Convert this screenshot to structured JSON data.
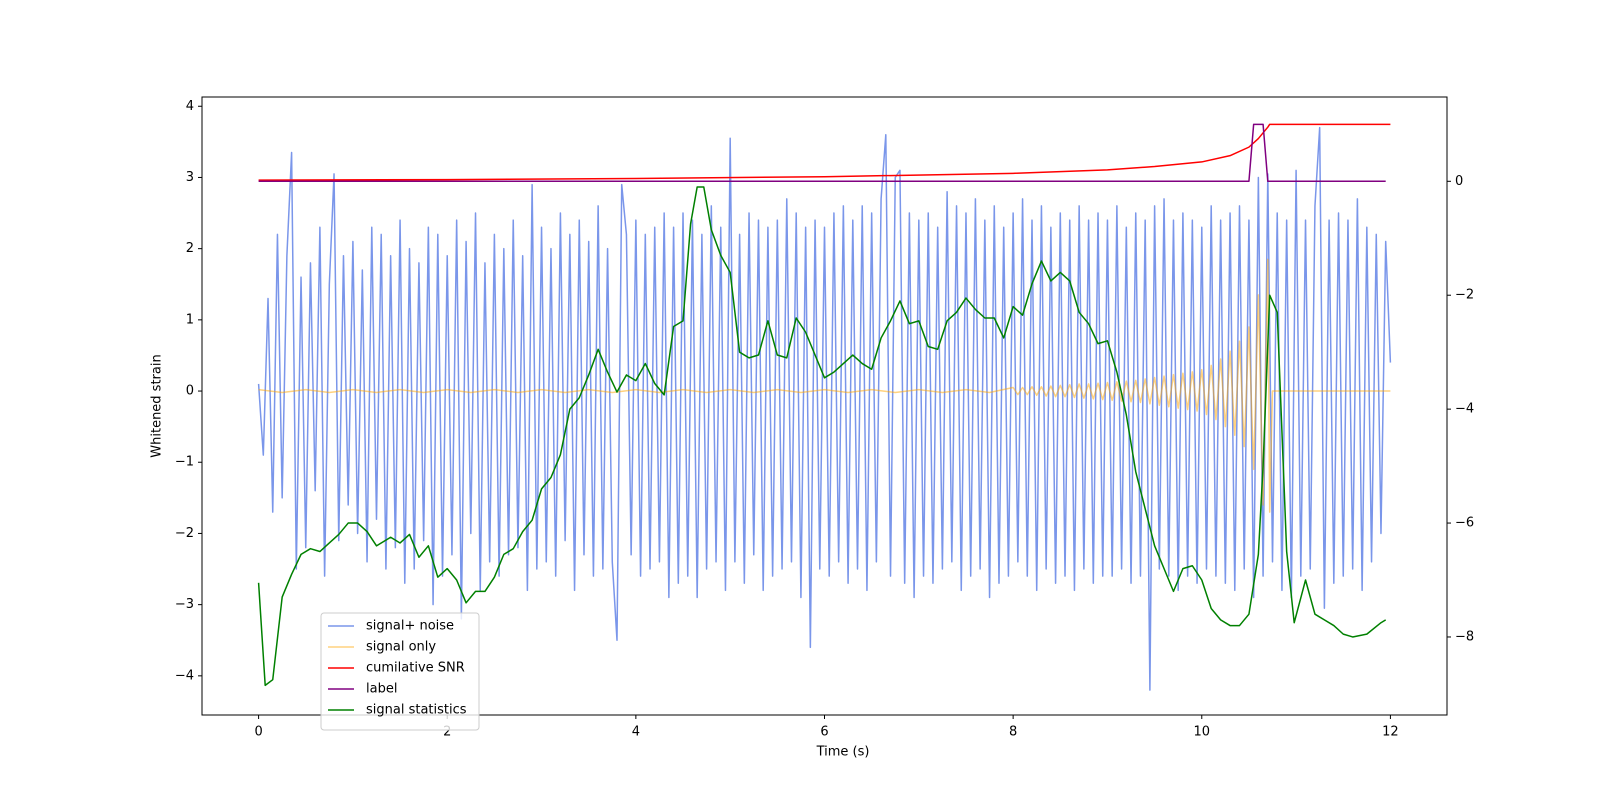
{
  "chart_data": {
    "type": "line",
    "x_label": "Time (s)",
    "y_label": "Whitened strain",
    "xlim": [
      -0.6,
      12.6
    ],
    "ylim": [
      -4.55,
      4.13
    ],
    "y2lim": [
      -9.37,
      1.48
    ],
    "xticks": [
      0,
      2,
      4,
      6,
      8,
      10,
      12
    ],
    "yticks": [
      {
        "value": -4,
        "label": "−4"
      },
      {
        "value": -3,
        "label": "−3"
      },
      {
        "value": -2,
        "label": "−2"
      },
      {
        "value": -1,
        "label": "−1"
      },
      0,
      1,
      2,
      3,
      4
    ],
    "y2ticks": [
      {
        "value": -8,
        "label": "−8"
      },
      {
        "value": -6,
        "label": "−6"
      },
      {
        "value": -4,
        "label": "−4"
      },
      {
        "value": -2,
        "label": "−2"
      },
      0
    ],
    "legend": "lower left",
    "series": [
      {
        "name": "signal+ noise",
        "color": "#4169e1",
        "alpha": 0.7,
        "x": [
          0,
          0.05,
          0.1,
          0.15,
          0.2,
          0.25,
          0.3,
          0.35,
          0.4,
          0.45,
          0.5,
          0.55,
          0.6,
          0.65,
          0.7,
          0.75,
          0.8,
          0.85,
          0.9,
          0.95,
          1,
          1.05,
          1.1,
          1.15,
          1.2,
          1.25,
          1.3,
          1.35,
          1.4,
          1.45,
          1.5,
          1.55,
          1.6,
          1.65,
          1.7,
          1.75,
          1.8,
          1.85,
          1.9,
          1.95,
          2,
          2.05,
          2.1,
          2.15,
          2.2,
          2.25,
          2.3,
          2.35,
          2.4,
          2.45,
          2.5,
          2.55,
          2.6,
          2.65,
          2.7,
          2.75,
          2.8,
          2.85,
          2.9,
          2.95,
          3,
          3.05,
          3.1,
          3.15,
          3.2,
          3.25,
          3.3,
          3.35,
          3.4,
          3.45,
          3.5,
          3.55,
          3.6,
          3.65,
          3.7,
          3.75,
          3.8,
          3.85,
          3.9,
          3.95,
          4,
          4.05,
          4.1,
          4.15,
          4.2,
          4.25,
          4.3,
          4.35,
          4.4,
          4.45,
          4.5,
          4.55,
          4.6,
          4.65,
          4.7,
          4.75,
          4.8,
          4.85,
          4.9,
          4.95,
          5,
          5.05,
          5.1,
          5.15,
          5.2,
          5.25,
          5.3,
          5.35,
          5.4,
          5.45,
          5.5,
          5.55,
          5.6,
          5.65,
          5.7,
          5.75,
          5.8,
          5.85,
          5.9,
          5.95,
          6,
          6.05,
          6.1,
          6.15,
          6.2,
          6.25,
          6.3,
          6.35,
          6.4,
          6.45,
          6.5,
          6.55,
          6.6,
          6.65,
          6.7,
          6.75,
          6.8,
          6.85,
          6.9,
          6.95,
          7,
          7.05,
          7.1,
          7.15,
          7.2,
          7.25,
          7.3,
          7.35,
          7.4,
          7.45,
          7.5,
          7.55,
          7.6,
          7.65,
          7.7,
          7.75,
          7.8,
          7.85,
          7.9,
          7.95,
          8,
          8.05,
          8.1,
          8.15,
          8.2,
          8.25,
          8.3,
          8.35,
          8.4,
          8.45,
          8.5,
          8.55,
          8.6,
          8.65,
          8.7,
          8.75,
          8.8,
          8.85,
          8.9,
          8.95,
          9,
          9.05,
          9.1,
          9.15,
          9.2,
          9.25,
          9.3,
          9.35,
          9.4,
          9.45,
          9.5,
          9.55,
          9.6,
          9.65,
          9.7,
          9.75,
          9.8,
          9.85,
          9.9,
          9.95,
          10,
          10.05,
          10.1,
          10.15,
          10.2,
          10.25,
          10.3,
          10.35,
          10.4,
          10.45,
          10.5,
          10.55,
          10.6,
          10.65,
          10.7,
          10.75,
          10.8,
          10.85,
          10.9,
          10.95,
          11,
          11.05,
          11.1,
          11.15,
          11.2,
          11.25,
          11.3,
          11.35,
          11.4,
          11.45,
          11.5,
          11.55,
          11.6,
          11.65,
          11.7,
          11.75,
          11.8,
          11.85,
          11.9,
          11.95,
          12
        ],
        "values": [
          0.1,
          -0.9,
          1.3,
          -1.7,
          2.2,
          -1.5,
          1.9,
          3.35,
          -2.5,
          1.6,
          -2.2,
          1.8,
          -1.4,
          2.3,
          -2.6,
          1.5,
          3.05,
          -2.1,
          1.9,
          -1.6,
          2.1,
          -2.0,
          1.7,
          -2.4,
          2.3,
          -1.8,
          2.2,
          -2.5,
          1.9,
          -2.2,
          2.4,
          -2.7,
          2.0,
          -2.5,
          1.8,
          -2.1,
          2.3,
          -3.0,
          2.2,
          -2.6,
          1.9,
          -2.3,
          2.4,
          -3.2,
          2.1,
          -2.0,
          2.5,
          -2.8,
          1.8,
          -2.4,
          2.2,
          -2.6,
          2.0,
          -2.3,
          2.4,
          -2.2,
          1.9,
          -2.8,
          2.9,
          -2.5,
          2.3,
          -2.4,
          2.0,
          -2.6,
          2.5,
          -2.1,
          2.2,
          -2.8,
          2.4,
          -2.3,
          2.1,
          -2.6,
          2.6,
          -2.5,
          2.0,
          -2.4,
          -3.5,
          2.9,
          2.2,
          -2.3,
          2.4,
          -2.6,
          2.2,
          -2.5,
          2.3,
          -2.4,
          2.5,
          -2.9,
          2.3,
          -2.7,
          2.5,
          -2.6,
          2.4,
          -2.9,
          2.2,
          -2.5,
          2.6,
          -2.4,
          2.3,
          -2.8,
          3.55,
          -2.4,
          2.2,
          -2.7,
          2.5,
          -2.3,
          2.4,
          -2.8,
          2.3,
          -2.6,
          2.4,
          -2.5,
          2.7,
          -2.4,
          2.5,
          -2.9,
          2.3,
          -3.6,
          2.4,
          -2.5,
          2.3,
          -2.6,
          2.5,
          -2.4,
          2.6,
          -2.7,
          2.4,
          -2.5,
          2.6,
          -2.8,
          2.5,
          -2.4,
          2.7,
          3.6,
          -2.6,
          3.0,
          3.1,
          -2.7,
          2.5,
          -2.9,
          2.4,
          -2.6,
          2.5,
          -2.7,
          2.3,
          -2.5,
          2.8,
          -2.4,
          2.6,
          -2.8,
          2.5,
          -2.6,
          2.7,
          -2.5,
          2.4,
          -2.9,
          2.6,
          -2.7,
          2.3,
          -2.6,
          2.5,
          -2.4,
          2.7,
          -2.6,
          2.4,
          -2.8,
          2.6,
          -2.5,
          2.3,
          -2.7,
          2.5,
          -2.6,
          2.4,
          -2.8,
          2.6,
          -2.5,
          2.4,
          -2.7,
          2.5,
          -2.6,
          2.4,
          -2.6,
          2.6,
          -2.5,
          2.3,
          -2.7,
          2.5,
          -2.6,
          2.4,
          -4.2,
          2.6,
          -2.5,
          2.7,
          -2.6,
          2.4,
          -2.8,
          2.5,
          -2.6,
          2.4,
          -2.7,
          2.3,
          -2.5,
          2.6,
          -2.6,
          2.4,
          -2.7,
          2.5,
          -2.8,
          2.6,
          -2.5,
          2.4,
          -2.9,
          3.0,
          -2.6,
          3.05,
          -2.4,
          2.5,
          -2.8,
          2.4,
          -2.9,
          3.1,
          -2.6,
          2.4,
          -2.5,
          2.6,
          3.7,
          -3.05,
          2.4,
          -2.7,
          2.5,
          -2.6,
          2.4,
          -2.5,
          2.7,
          -2.8,
          2.3,
          -2.4,
          2.2,
          -2.0,
          2.1,
          0.4
        ]
      },
      {
        "name": "signal only",
        "color": "#ffa500",
        "alpha": 0.5,
        "x": [
          0,
          0.25,
          0.5,
          0.75,
          1,
          1.25,
          1.5,
          1.75,
          2,
          2.25,
          2.5,
          2.75,
          3,
          3.25,
          3.5,
          3.75,
          4,
          4.25,
          4.5,
          4.75,
          5,
          5.25,
          5.5,
          5.75,
          6,
          6.25,
          6.5,
          6.75,
          7,
          7.25,
          7.5,
          7.75,
          8,
          8.05,
          8.1,
          8.15,
          8.2,
          8.25,
          8.3,
          8.35,
          8.4,
          8.45,
          8.5,
          8.55,
          8.6,
          8.65,
          8.7,
          8.75,
          8.8,
          8.85,
          8.9,
          8.95,
          9,
          9.05,
          9.1,
          9.15,
          9.2,
          9.25,
          9.3,
          9.35,
          9.4,
          9.45,
          9.5,
          9.55,
          9.6,
          9.65,
          9.7,
          9.75,
          9.8,
          9.85,
          9.9,
          9.95,
          10,
          10.05,
          10.1,
          10.15,
          10.2,
          10.25,
          10.3,
          10.35,
          10.4,
          10.45,
          10.5,
          10.55,
          10.6,
          10.65,
          10.7,
          10.72,
          10.75,
          12
        ],
        "values": [
          0.02,
          -0.02,
          0.02,
          -0.02,
          0.02,
          -0.02,
          0.02,
          -0.02,
          0.02,
          -0.02,
          0.02,
          -0.02,
          0.02,
          -0.02,
          0.02,
          -0.02,
          0.02,
          -0.02,
          0.02,
          -0.02,
          0.02,
          -0.02,
          0.02,
          -0.02,
          0.02,
          -0.02,
          0.02,
          -0.02,
          0.02,
          -0.02,
          0.02,
          -0.02,
          0.05,
          -0.05,
          0.05,
          -0.05,
          0.06,
          -0.06,
          0.06,
          -0.07,
          0.07,
          -0.08,
          0.08,
          -0.08,
          0.09,
          -0.09,
          0.1,
          -0.1,
          0.1,
          -0.11,
          0.11,
          -0.12,
          0.12,
          -0.13,
          0.13,
          -0.14,
          0.14,
          -0.15,
          0.15,
          -0.16,
          0.17,
          -0.18,
          0.19,
          -0.2,
          0.21,
          -0.22,
          0.23,
          -0.24,
          0.25,
          -0.26,
          0.27,
          -0.28,
          0.3,
          -0.33,
          0.36,
          -0.4,
          0.45,
          -0.5,
          0.56,
          -0.62,
          0.7,
          -0.78,
          0.9,
          -1.1,
          1.35,
          -1.6,
          1.85,
          -1.7,
          0,
          0
        ]
      },
      {
        "name": "cumilative SNR",
        "color": "#ff0000",
        "axis": "y2",
        "x": [
          0,
          2,
          4,
          6,
          8,
          9,
          9.5,
          10,
          10.3,
          10.5,
          10.6,
          10.7,
          10.72,
          11,
          12
        ],
        "values": [
          0.02,
          0.03,
          0.05,
          0.08,
          0.14,
          0.2,
          0.26,
          0.34,
          0.45,
          0.6,
          0.75,
          0.95,
          1.0,
          1.0,
          1.0
        ]
      },
      {
        "name": "label",
        "color": "#800080",
        "axis": "y2",
        "x": [
          0,
          10.5,
          10.55,
          10.65,
          10.7,
          11.95
        ],
        "values": [
          0,
          0,
          1,
          1,
          0,
          0
        ]
      },
      {
        "name": "signal statistics",
        "color": "#008000",
        "axis": "y2",
        "x": [
          0,
          0.07,
          0.15,
          0.25,
          0.35,
          0.45,
          0.55,
          0.65,
          0.75,
          0.85,
          0.95,
          1.05,
          1.15,
          1.25,
          1.4,
          1.5,
          1.6,
          1.7,
          1.8,
          1.9,
          2.0,
          2.1,
          2.2,
          2.3,
          2.4,
          2.5,
          2.6,
          2.7,
          2.8,
          2.9,
          3.0,
          3.1,
          3.2,
          3.3,
          3.4,
          3.5,
          3.6,
          3.7,
          3.8,
          3.9,
          4.0,
          4.1,
          4.2,
          4.3,
          4.4,
          4.5,
          4.58,
          4.65,
          4.72,
          4.8,
          4.9,
          5.0,
          5.1,
          5.2,
          5.3,
          5.4,
          5.5,
          5.6,
          5.7,
          5.8,
          5.9,
          6.0,
          6.1,
          6.2,
          6.3,
          6.4,
          6.5,
          6.6,
          6.7,
          6.8,
          6.9,
          7.0,
          7.1,
          7.2,
          7.3,
          7.4,
          7.5,
          7.6,
          7.7,
          7.8,
          7.9,
          8.0,
          8.1,
          8.2,
          8.3,
          8.4,
          8.5,
          8.6,
          8.7,
          8.8,
          8.9,
          9.0,
          9.1,
          9.2,
          9.3,
          9.4,
          9.5,
          9.6,
          9.7,
          9.8,
          9.9,
          10.0,
          10.1,
          10.2,
          10.3,
          10.4,
          10.5,
          10.6,
          10.65,
          10.72,
          10.8,
          10.9,
          10.98,
          11.1,
          11.2,
          11.3,
          11.4,
          11.5,
          11.6,
          11.75,
          11.9,
          11.95
        ],
        "values": [
          -7.05,
          -8.85,
          -8.75,
          -7.3,
          -6.9,
          -6.55,
          -6.45,
          -6.5,
          -6.35,
          -6.2,
          -6.0,
          -6.0,
          -6.15,
          -6.4,
          -6.25,
          -6.35,
          -6.2,
          -6.6,
          -6.4,
          -6.95,
          -6.8,
          -7.0,
          -7.4,
          -7.2,
          -7.2,
          -6.95,
          -6.55,
          -6.45,
          -6.15,
          -5.95,
          -5.4,
          -5.2,
          -4.8,
          -4.0,
          -3.8,
          -3.4,
          -2.95,
          -3.35,
          -3.7,
          -3.4,
          -3.5,
          -3.2,
          -3.55,
          -3.75,
          -2.55,
          -2.45,
          -0.75,
          -0.1,
          -0.1,
          -0.85,
          -1.3,
          -1.6,
          -3.0,
          -3.1,
          -3.05,
          -2.45,
          -3.05,
          -3.1,
          -2.4,
          -2.65,
          -3.05,
          -3.45,
          -3.35,
          -3.2,
          -3.05,
          -3.2,
          -3.3,
          -2.75,
          -2.45,
          -2.1,
          -2.5,
          -2.45,
          -2.9,
          -2.95,
          -2.45,
          -2.3,
          -2.05,
          -2.25,
          -2.4,
          -2.4,
          -2.75,
          -2.2,
          -2.35,
          -1.8,
          -1.4,
          -1.75,
          -1.6,
          -1.75,
          -2.3,
          -2.5,
          -2.85,
          -2.8,
          -3.35,
          -4.1,
          -5.1,
          -5.75,
          -6.4,
          -6.8,
          -7.2,
          -6.8,
          -6.75,
          -7.0,
          -7.5,
          -7.7,
          -7.8,
          -7.8,
          -7.6,
          -6.55,
          -5.0,
          -2.0,
          -2.3,
          -6.5,
          -7.75,
          -7.0,
          -7.6,
          -7.7,
          -7.8,
          -7.95,
          -8.0,
          -7.95,
          -7.75,
          -7.7
        ]
      }
    ]
  }
}
